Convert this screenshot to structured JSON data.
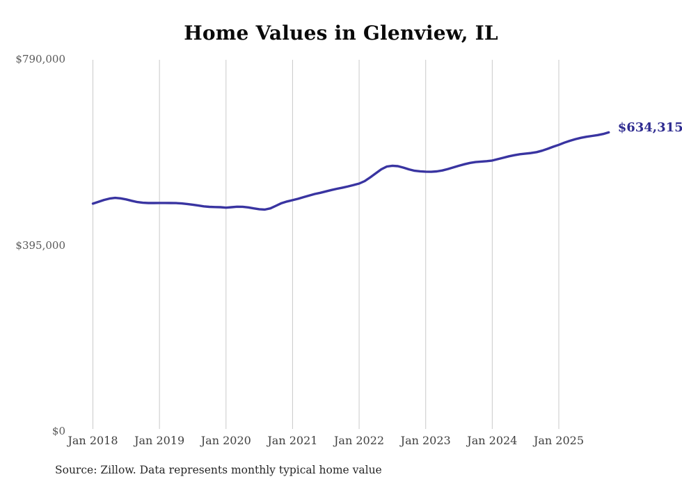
{
  "chart": {
    "title": "Home Values in Glenview, IL",
    "latest_value_label": "$634,315",
    "source_note": "Source: Zillow. Data represents monthly typical home value",
    "colors": {
      "line": "#3934a1",
      "latest_label": "#2e2b90",
      "gridline": "#c9c9c9",
      "x_axis_text": "#3f3f3f",
      "y_axis_text": "#595959",
      "title_text": "#0a0a0a",
      "background": "#ffffff"
    }
  },
  "chart_data": {
    "type": "line",
    "title": "Home Values in Glenview, IL",
    "series_name": "Monthly typical home value (Zillow)",
    "grid": "vertical-only",
    "legend": "none",
    "ylim": [
      0,
      790000
    ],
    "y_ticks": [
      {
        "label": "$790,000",
        "value": 790000
      },
      {
        "label": "$395,000",
        "value": 395000
      },
      {
        "label": "$0",
        "value": 0
      }
    ],
    "x_tick_labels": [
      "Jan 2018",
      "Jan 2019",
      "Jan 2020",
      "Jan 2021",
      "Jan 2022",
      "Jan 2023",
      "Jan 2024",
      "Jan 2025"
    ],
    "latest": {
      "label": "$634,315",
      "value": 634315,
      "month": "2025-10"
    },
    "x": [
      "2018-01",
      "2018-02",
      "2018-03",
      "2018-04",
      "2018-05",
      "2018-06",
      "2018-07",
      "2018-08",
      "2018-09",
      "2018-10",
      "2018-11",
      "2018-12",
      "2019-01",
      "2019-02",
      "2019-03",
      "2019-04",
      "2019-05",
      "2019-06",
      "2019-07",
      "2019-08",
      "2019-09",
      "2019-10",
      "2019-11",
      "2019-12",
      "2020-01",
      "2020-02",
      "2020-03",
      "2020-04",
      "2020-05",
      "2020-06",
      "2020-07",
      "2020-08",
      "2020-09",
      "2020-10",
      "2020-11",
      "2020-12",
      "2021-01",
      "2021-02",
      "2021-03",
      "2021-04",
      "2021-05",
      "2021-06",
      "2021-07",
      "2021-08",
      "2021-09",
      "2021-10",
      "2021-11",
      "2021-12",
      "2022-01",
      "2022-02",
      "2022-03",
      "2022-04",
      "2022-05",
      "2022-06",
      "2022-07",
      "2022-08",
      "2022-09",
      "2022-10",
      "2022-11",
      "2022-12",
      "2023-01",
      "2023-02",
      "2023-03",
      "2023-04",
      "2023-05",
      "2023-06",
      "2023-07",
      "2023-08",
      "2023-09",
      "2023-10",
      "2023-11",
      "2023-12",
      "2024-01",
      "2024-02",
      "2024-03",
      "2024-04",
      "2024-05",
      "2024-06",
      "2024-07",
      "2024-08",
      "2024-09",
      "2024-10",
      "2024-11",
      "2024-12",
      "2025-01",
      "2025-02",
      "2025-03",
      "2025-04",
      "2025-05",
      "2025-06",
      "2025-07",
      "2025-08",
      "2025-09",
      "2025-10"
    ],
    "values": [
      483000,
      486800,
      490800,
      493800,
      495200,
      494300,
      492000,
      489000,
      486400,
      484900,
      484300,
      484400,
      484500,
      484500,
      484400,
      484200,
      483500,
      482300,
      480800,
      479000,
      477300,
      476200,
      475700,
      475500,
      474500,
      475500,
      476500,
      476400,
      475000,
      473000,
      471200,
      470400,
      473000,
      478500,
      484000,
      487600,
      490400,
      493400,
      496900,
      500300,
      503500,
      506000,
      509000,
      512000,
      514600,
      517000,
      519700,
      522600,
      525700,
      530800,
      538800,
      547500,
      556000,
      561800,
      563500,
      562600,
      559500,
      555800,
      552800,
      551600,
      551000,
      550700,
      551500,
      553500,
      556500,
      560000,
      563500,
      566800,
      569500,
      571300,
      572400,
      573200,
      574500,
      577500,
      580500,
      583500,
      586000,
      588000,
      589300,
      590500,
      592500,
      595500,
      599500,
      604000,
      608000,
      612500,
      616500,
      620000,
      622800,
      625000,
      626800,
      628600,
      631000,
      634315
    ]
  }
}
